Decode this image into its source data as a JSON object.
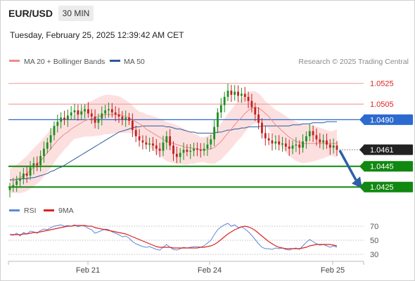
{
  "header": {
    "symbol": "EUR/USD",
    "timeframe": "30 MIN",
    "timestamp": "Tuesday, February 25, 2025 12:39:42 AM CET"
  },
  "legend": {
    "ma20_label": "MA 20 + Bollinger Bands",
    "ma20_color": "#f28a8a",
    "ma50_label": "MA 50",
    "ma50_color": "#2d5a9a",
    "copyright": "Research © 2025 Trading Central"
  },
  "rsi_legend": {
    "rsi_label": "RSI",
    "rsi_color": "#5a8ad8",
    "ma9_label": "9MA",
    "ma9_color": "#dd2222"
  },
  "chart_data": [
    {
      "type": "candlestick",
      "ylim": [
        1.0415,
        1.0537
      ],
      "x_ticks": [
        "Feb 21",
        "Feb 24",
        "Feb 25"
      ],
      "resistance_levels": [
        1.0525,
        1.0505
      ],
      "pivot_level": 1.049,
      "support_levels": [
        1.0445,
        1.0425
      ],
      "current_price": 1.0461,
      "price_labels": [
        "1.0525",
        "1.0505",
        "1.0490",
        "1.0461",
        "1.0445",
        "1.0425"
      ],
      "colors": {
        "resistance": "#f4a3a3",
        "resistance_text": "#dd2222",
        "pivot": "#2d6ad0",
        "support": "#118811",
        "current": "#222222",
        "bands": "#fbd6d6",
        "up": "#1f8f1f",
        "down": "#c42020"
      },
      "forecast": {
        "from": 1.0461,
        "to": 1.0425,
        "color": "#2f5fa8"
      },
      "close": [
        1.0425,
        1.0427,
        1.0431,
        1.0433,
        1.0438,
        1.0436,
        1.0444,
        1.0448,
        1.0446,
        1.0455,
        1.0462,
        1.0468,
        1.0475,
        1.0484,
        1.0488,
        1.0492,
        1.049,
        1.0494,
        1.0497,
        1.0499,
        1.0495,
        1.0498,
        1.05,
        1.0496,
        1.0493,
        1.0487,
        1.0491,
        1.0496,
        1.0499,
        1.05,
        1.0497,
        1.0495,
        1.0493,
        1.049,
        1.0492,
        1.0489,
        1.048,
        1.0474,
        1.047,
        1.0468,
        1.0466,
        1.0467,
        1.0465,
        1.0462,
        1.046,
        1.0468,
        1.0474,
        1.0465,
        1.0457,
        1.0454,
        1.0458,
        1.0461,
        1.0459,
        1.046,
        1.0462,
        1.0461,
        1.046,
        1.0462,
        1.0466,
        1.0471,
        1.0483,
        1.0497,
        1.0504,
        1.0512,
        1.0518,
        1.0514,
        1.0517,
        1.0513,
        1.0515,
        1.0512,
        1.0508,
        1.0502,
        1.0495,
        1.0487,
        1.0477,
        1.0472,
        1.047,
        1.0467,
        1.0469,
        1.0466,
        1.0467,
        1.0464,
        1.0462,
        1.0465,
        1.0466,
        1.0463,
        1.0469,
        1.0474,
        1.0479,
        1.0475,
        1.0471,
        1.0468,
        1.047,
        1.0466,
        1.0463,
        1.0465,
        1.0461
      ],
      "ma20": [
        1.0431,
        1.0432,
        1.0433,
        1.0434,
        1.0436,
        1.0438,
        1.0441,
        1.0444,
        1.0447,
        1.045,
        1.0454,
        1.0458,
        1.0462,
        1.0466,
        1.047,
        1.0473,
        1.0476,
        1.0478,
        1.0481,
        1.0483,
        1.0485,
        1.0487,
        1.0489,
        1.049,
        1.0491,
        1.0492,
        1.0493,
        1.0494,
        1.0495,
        1.0495,
        1.0495,
        1.0495,
        1.0495,
        1.0494,
        1.0493,
        1.0492,
        1.049,
        1.0488,
        1.0486,
        1.0484,
        1.0481,
        1.0479,
        1.0477,
        1.0475,
        1.0473,
        1.0471,
        1.0469,
        1.0468,
        1.0467,
        1.0466,
        1.0465,
        1.0464,
        1.0463,
        1.0463,
        1.0462,
        1.0462,
        1.0461,
        1.0461,
        1.0461,
        1.0462,
        1.0463,
        1.0466,
        1.0469,
        1.0473,
        1.0477,
        1.0481,
        1.0485,
        1.0489,
        1.0492,
        1.0496,
        1.0499,
        1.0501,
        1.0502,
        1.0501,
        1.0499,
        1.0496,
        1.0493,
        1.0489,
        1.0485,
        1.0482,
        1.0479,
        1.0476,
        1.0473,
        1.0471,
        1.0469,
        1.0468,
        1.0467,
        1.0467,
        1.0467,
        1.0467,
        1.0467,
        1.0467,
        1.0467,
        1.0467,
        1.0467,
        1.0467,
        1.0467
      ],
      "ma50": [
        1.0432,
        1.0432,
        1.0432,
        1.0433,
        1.0433,
        1.0433,
        1.0434,
        1.0434,
        1.0435,
        1.0436,
        1.0437,
        1.0438,
        1.044,
        1.0441,
        1.0443,
        1.0444,
        1.0446,
        1.0448,
        1.045,
        1.0452,
        1.0454,
        1.0456,
        1.0458,
        1.046,
        1.0462,
        1.0464,
        1.0466,
        1.0468,
        1.047,
        1.0472,
        1.0474,
        1.0476,
        1.0478,
        1.0479,
        1.048,
        1.0481,
        1.0482,
        1.0483,
        1.0483,
        1.0484,
        1.0484,
        1.0484,
        1.0484,
        1.0484,
        1.0484,
        1.0484,
        1.0483,
        1.0483,
        1.0482,
        1.0481,
        1.0481,
        1.048,
        1.0479,
        1.0478,
        1.0478,
        1.0477,
        1.0477,
        1.0477,
        1.0477,
        1.0477,
        1.0477,
        1.0478,
        1.0478,
        1.0479,
        1.048,
        1.048,
        1.0481,
        1.0481,
        1.0482,
        1.0482,
        1.0483,
        1.0483,
        1.0483,
        1.0483,
        1.0484,
        1.0484,
        1.0484,
        1.0484,
        1.0484,
        1.0484,
        1.0484,
        1.0484,
        1.0484,
        1.0485,
        1.0485,
        1.0485,
        1.0486,
        1.0486,
        1.0486,
        1.0487,
        1.0487,
        1.0487,
        1.0487,
        1.0488,
        1.0488,
        1.0488,
        1.0488
      ]
    },
    {
      "type": "line",
      "name": "RSI",
      "ylim": [
        25,
        80
      ],
      "y_ticks": [
        "70",
        "50",
        "30"
      ],
      "rsi": [
        58,
        57,
        60,
        56,
        61,
        59,
        63,
        62,
        60,
        64,
        66,
        65,
        68,
        70,
        71,
        72,
        70,
        71,
        70,
        72,
        69,
        71,
        70,
        67,
        65,
        60,
        62,
        64,
        66,
        65,
        62,
        60,
        58,
        55,
        56,
        53,
        48,
        45,
        43,
        41,
        40,
        41,
        39,
        37,
        36,
        40,
        44,
        40,
        37,
        36,
        38,
        40,
        39,
        40,
        41,
        41,
        40,
        42,
        46,
        50,
        58,
        65,
        69,
        72,
        74,
        70,
        72,
        68,
        69,
        66,
        62,
        57,
        51,
        45,
        40,
        38,
        38,
        37,
        39,
        38,
        39,
        37,
        36,
        38,
        39,
        37,
        42,
        47,
        51,
        48,
        45,
        43,
        44,
        42,
        40,
        42,
        40
      ],
      "ma9": [
        58,
        58,
        58,
        58,
        59,
        59,
        60,
        61,
        61,
        62,
        63,
        64,
        65,
        66,
        67,
        68,
        69,
        70,
        70,
        71,
        71,
        71,
        71,
        70,
        70,
        68,
        67,
        66,
        65,
        64,
        63,
        62,
        61,
        60,
        59,
        57,
        55,
        53,
        51,
        49,
        47,
        45,
        43,
        41,
        40,
        40,
        40,
        40,
        39,
        39,
        39,
        39,
        39,
        39,
        39,
        39,
        40,
        40,
        41,
        42,
        44,
        47,
        51,
        55,
        59,
        62,
        65,
        67,
        69,
        70,
        69,
        67,
        64,
        60,
        56,
        52,
        48,
        45,
        42,
        40,
        39,
        38,
        38,
        38,
        38,
        38,
        39,
        40,
        42,
        43,
        44,
        44,
        44,
        44,
        44,
        43,
        42
      ]
    }
  ]
}
